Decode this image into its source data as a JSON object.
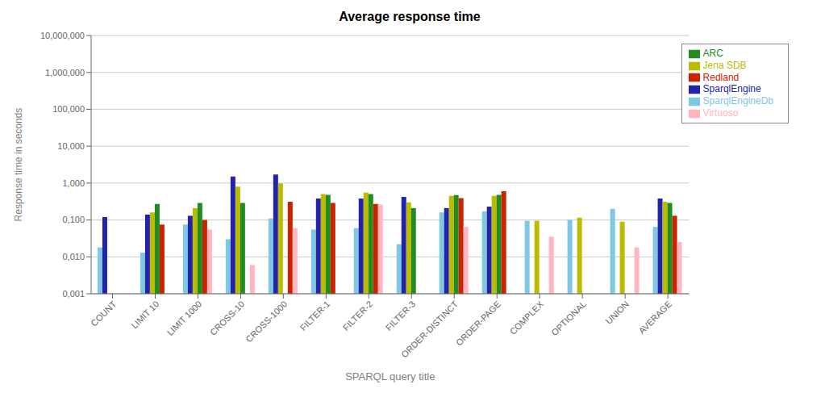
{
  "chart_data": {
    "type": "bar",
    "title": "Average response time",
    "xlabel": "SPARQL query title",
    "ylabel": "Response time in seconds",
    "categories": [
      "COUNT",
      "LIMIT 10",
      "LIMIT 1000",
      "CROSS-10",
      "CROSS-1000",
      "FILTER-1",
      "FILTER-2",
      "FILTER-3",
      "ORDER-DISTINCT",
      "ORDER-PAGE",
      "COMPLEX",
      "OPTIONAL",
      "UNION",
      "AVERAGE"
    ],
    "series": [
      {
        "name": "SparqlEngineDb",
        "color": "#7EC8E3",
        "values": [
          0.018,
          0.013,
          0.075,
          0.03,
          0.11,
          0.055,
          0.06,
          0.022,
          0.16,
          0.17,
          0.095,
          0.1,
          0.2,
          0.065
        ]
      },
      {
        "name": "SparqlEngine",
        "color": "#2222AA",
        "values": [
          0.12,
          0.14,
          0.13,
          1.5,
          1.7,
          0.38,
          0.38,
          0.42,
          0.21,
          0.23,
          null,
          null,
          null,
          0.38
        ]
      },
      {
        "name": "Jena SDB",
        "color": "#BBBB00",
        "values": [
          null,
          0.16,
          0.21,
          0.8,
          0.98,
          0.5,
          0.55,
          0.3,
          0.45,
          0.45,
          0.095,
          0.115,
          0.09,
          0.31
        ]
      },
      {
        "name": "ARC",
        "color": "#228B22",
        "values": [
          null,
          0.27,
          0.29,
          0.29,
          null,
          0.48,
          0.5,
          0.21,
          0.47,
          0.48,
          null,
          null,
          null,
          0.29
        ]
      },
      {
        "name": "Redland",
        "color": "#CC2200",
        "values": [
          null,
          0.075,
          0.1,
          null,
          0.31,
          0.29,
          0.27,
          null,
          0.39,
          0.6,
          null,
          null,
          null,
          0.13
        ]
      },
      {
        "name": "Virtuoso",
        "color": "#FFB6C1",
        "values": [
          null,
          null,
          0.055,
          0.006,
          0.06,
          null,
          0.26,
          null,
          0.065,
          null,
          0.035,
          null,
          0.018,
          0.025
        ]
      }
    ],
    "ylim": [
      0.001,
      10000
    ],
    "yticks": [
      {
        "value": 0.001,
        "label": "0,001"
      },
      {
        "value": 0.01,
        "label": "0,010"
      },
      {
        "value": 0.1,
        "label": "0,100"
      },
      {
        "value": 1.0,
        "label": "1,000"
      },
      {
        "value": 10.0,
        "label": "10,000"
      },
      {
        "value": 100.0,
        "label": "100,000"
      },
      {
        "value": 1000.0,
        "label": "1,000,000"
      },
      {
        "value": 10000.0,
        "label": "10,000,000"
      }
    ],
    "log": "y",
    "grid": true,
    "legend": "upper right"
  }
}
